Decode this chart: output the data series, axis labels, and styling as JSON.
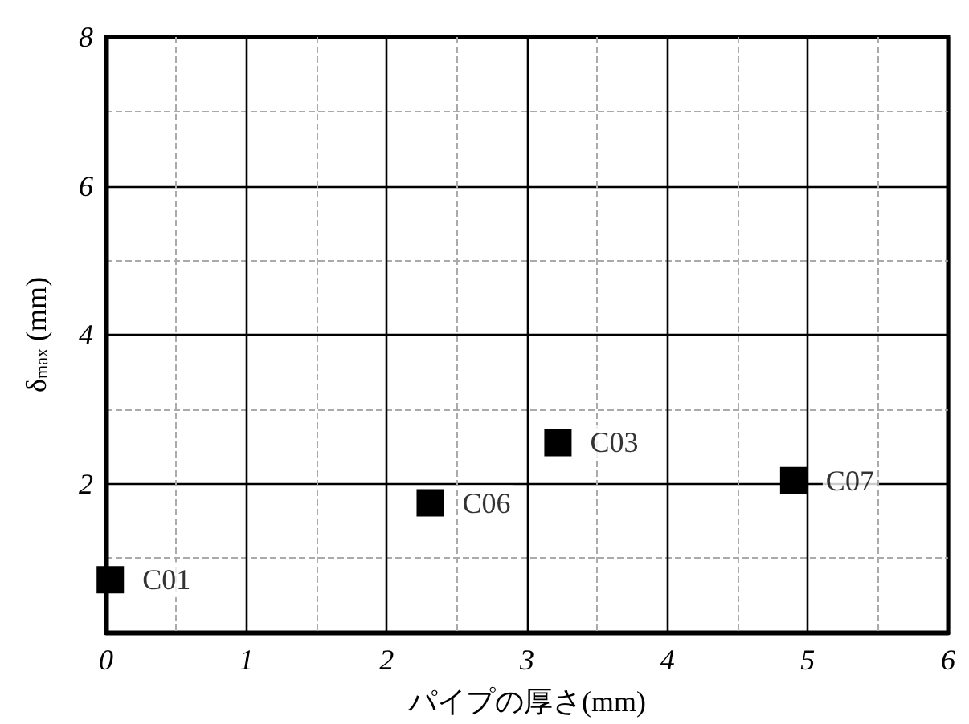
{
  "chart_data": {
    "type": "scatter",
    "xlabel": "パイプの厚さ(mm)",
    "ylabel": "δ$_{max}$ (mm)",
    "x": [
      0.03,
      2.31,
      3.22,
      4.9
    ],
    "series": [
      {
        "color": "#000000",
        "values": [
          0.71,
          1.74,
          2.55,
          2.04
        ]
      }
    ],
    "xlim": [
      0,
      6
    ],
    "xticks": [
      0,
      1,
      2,
      3,
      4,
      5,
      6
    ],
    "ylim": [
      0,
      8
    ],
    "yticks": [
      {
        "value": 0,
        "label": null
      },
      2,
      4,
      6,
      8
    ],
    "grid": true,
    "marker": "square",
    "annotations": [
      {
        "text": "C01",
        "x": 0.03,
        "y": 0.71
      },
      {
        "text": "C06",
        "x": 2.31,
        "y": 1.74
      },
      {
        "text": "C03",
        "x": 3.22,
        "y": 2.55
      },
      {
        "text": "C07",
        "x": 4.9,
        "y": 2.04
      }
    ]
  }
}
